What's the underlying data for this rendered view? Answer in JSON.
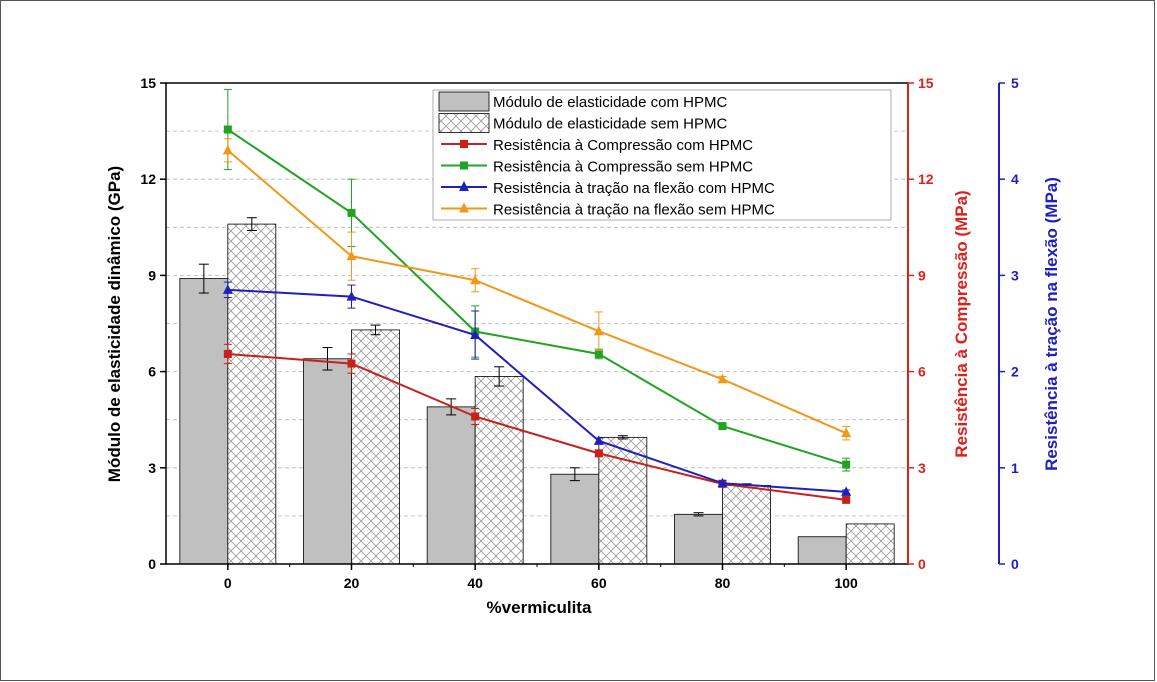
{
  "chart_data": {
    "type": "bar",
    "title": "",
    "xlabel": "%vermiculita",
    "categories": [
      "0",
      "20",
      "40",
      "60",
      "80",
      "100"
    ],
    "x": [
      0,
      20,
      40,
      60,
      80,
      100
    ],
    "grid": "horizontal dashed",
    "legend_position": "top-right",
    "axes": {
      "left": {
        "label": "Módulo de elasticidade dinâmico (GPa)",
        "min": 0,
        "max": 15,
        "ticks": [
          "0",
          "3",
          "6",
          "9",
          "12",
          "15"
        ],
        "color": "#000000"
      },
      "right1": {
        "label": "Resistência à Compressão (MPa)",
        "min": 0,
        "max": 15,
        "ticks": [
          "0",
          "3",
          "6",
          "9",
          "12",
          "15"
        ],
        "color": "#e0201b"
      },
      "right2": {
        "label": "Resistência à tração na flexão (MPa)",
        "min": 0,
        "max": 5,
        "ticks": [
          "0",
          "1",
          "2",
          "3",
          "4",
          "5"
        ],
        "color": "#1f1fbf"
      }
    },
    "bar_series": [
      {
        "name": "Módulo de elasticidade com HPMC",
        "values": [
          8.9,
          6.4,
          4.9,
          2.8,
          1.55,
          0.85
        ],
        "errors": [
          0.45,
          0.35,
          0.25,
          0.2,
          0.05,
          0.0
        ],
        "fill": "#c0c0c0",
        "pattern": "solid"
      },
      {
        "name": "Módulo de elasticidade sem HPMC",
        "values": [
          10.6,
          7.3,
          5.85,
          3.95,
          2.45,
          1.25
        ],
        "errors": [
          0.2,
          0.15,
          0.3,
          0.05,
          0.05,
          0.0
        ],
        "fill": "#ffffff",
        "pattern": "crosshatch"
      }
    ],
    "line_series": [
      {
        "name": "Resistência à Compressão com HPMC",
        "axis": "right1",
        "values": [
          6.55,
          6.25,
          4.6,
          3.45,
          2.5,
          2.0
        ],
        "errors": [
          0.3,
          0.3,
          0.25,
          0.1,
          0.1,
          0.05
        ],
        "color": "#c8201b",
        "marker": "square"
      },
      {
        "name": "Resistência à Compressão sem HPMC",
        "axis": "right1",
        "values": [
          13.55,
          10.95,
          7.25,
          6.55,
          4.3,
          3.1
        ],
        "errors": [
          1.25,
          1.05,
          0.8,
          0.15,
          0.1,
          0.2
        ],
        "color": "#21a321",
        "marker": "square"
      },
      {
        "name": "Resistência à tração na flexão com HPMC",
        "axis": "right2",
        "values": [
          2.85,
          2.78,
          2.38,
          1.28,
          0.84,
          0.75
        ],
        "errors": [
          0.08,
          0.12,
          0.25,
          0.03,
          0.03,
          0.02
        ],
        "color": "#1f1fbf",
        "marker": "triangle"
      },
      {
        "name": "Resistência à tração na flexão sem HPMC",
        "axis": "right2",
        "values": [
          4.3,
          3.2,
          2.95,
          2.42,
          1.92,
          1.36
        ],
        "errors": [
          0.12,
          0.25,
          0.12,
          0.2,
          0.03,
          0.07
        ],
        "color": "#f29718",
        "marker": "triangle"
      }
    ]
  }
}
